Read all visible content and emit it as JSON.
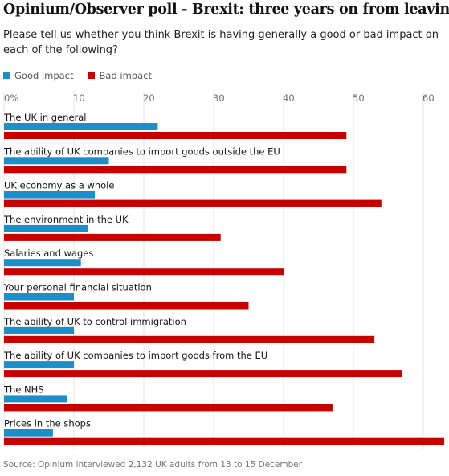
{
  "title": "Opinium/Observer poll - Brexit: three years on from leaving",
  "subtitle": "Please tell us whether you think Brexit is having generally a good or bad impact on each of the following?",
  "legend": {
    "good_label": "Good impact",
    "bad_label": "Bad impact"
  },
  "colors": {
    "good": "#1c8fc9",
    "bad": "#c70000"
  },
  "source": "Source: Opinium interviewed 2,132 UK adults from 13 to 15 December",
  "chart_data": {
    "type": "bar",
    "orientation": "horizontal",
    "title": "Opinium/Observer poll - Brexit: three years on from leaving",
    "xlim": [
      0,
      63
    ],
    "ticks": [
      0,
      10,
      20,
      30,
      40,
      50,
      60
    ],
    "tick_labels": [
      "0%",
      "10",
      "20",
      "30",
      "40",
      "50",
      "60"
    ],
    "grid": true,
    "legend_position": "top-left",
    "categories": [
      "The UK in general",
      "The ability of UK companies to import goods outside the EU",
      "UK economy as a whole",
      "The environment in the UK",
      "Salaries and wages",
      "Your personal financial situation",
      "The ability of UK to control immigration",
      "The ability of UK companies to import goods from the EU",
      "The NHS",
      "Prices in the shops"
    ],
    "series": [
      {
        "name": "Good impact",
        "color": "#1c8fc9",
        "values": [
          22,
          15,
          13,
          12,
          11,
          10,
          10,
          10,
          9,
          7
        ]
      },
      {
        "name": "Bad impact",
        "color": "#c70000",
        "values": [
          49,
          49,
          54,
          31,
          40,
          35,
          53,
          57,
          47,
          63
        ]
      }
    ]
  }
}
